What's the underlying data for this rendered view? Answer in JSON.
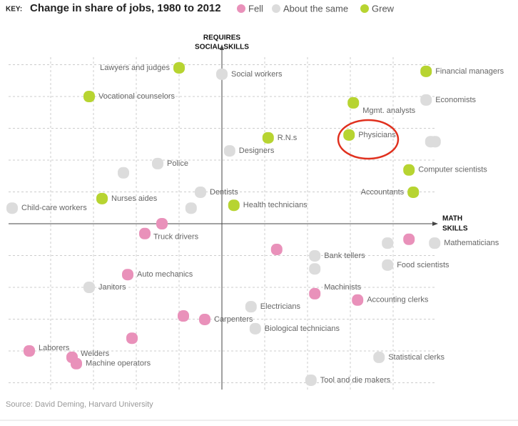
{
  "chart_data": {
    "type": "scatter",
    "key": "KEY:",
    "title": "Change in share of jobs, 1980 to 2012",
    "y_label": [
      "REQUIRES",
      "SOCIAL SKILLS"
    ],
    "x_label": [
      "MATH",
      "SKILLS"
    ],
    "source": "Source: David Deming, Harvard University",
    "xlim": [
      -5,
      5
    ],
    "ylim": [
      -5,
      5
    ],
    "xticks": [
      -4,
      -3,
      -2,
      -1,
      0,
      1,
      2,
      3,
      4
    ],
    "yticks": [
      -5,
      -4,
      -3,
      -2,
      -1,
      0,
      1,
      2,
      3,
      4,
      5
    ],
    "grid": true,
    "series": [
      {
        "name": "Fell",
        "color": "#e991ba",
        "x": [
          -1.4,
          -1.8,
          4.37,
          1.28,
          -2.2,
          2.17,
          3.17,
          -0.9,
          -0.4,
          -2.1,
          -4.5,
          -3.5,
          -3.4
        ],
        "values": [
          0,
          -0.31,
          -0.49,
          -0.81,
          -1.6,
          -2.2,
          -2.4,
          -2.9,
          -3.01,
          -3.6,
          -4.0,
          -4.2,
          -4.4
        ],
        "labels": [
          null,
          "Truck drivers",
          null,
          null,
          "Auto mechanics",
          "Machinists",
          "Accounting clerks",
          null,
          "Carpenters",
          null,
          "Laborers",
          "Welders",
          "Machine operators"
        ]
      },
      {
        "name": "About the same",
        "color": "#dcdcdc",
        "x": [
          0,
          4.77,
          4.88,
          4.98,
          0.18,
          -1.5,
          -2.3,
          -0.5,
          -0.72,
          -4.9,
          3.87,
          4.97,
          2.17,
          2.17,
          3.87,
          -3.1,
          0.68,
          0.78,
          3.67,
          2.08
        ],
        "values": [
          4.7,
          3.89,
          2.58,
          2.58,
          2.29,
          1.89,
          1.6,
          0.99,
          0.49,
          0.49,
          -0.61,
          -0.61,
          -1.01,
          -1.42,
          -1.3,
          -2.0,
          -2.61,
          -3.3,
          -4.2,
          -4.92
        ],
        "labels": [
          "Social workers",
          "Economists",
          null,
          null,
          "Designers",
          "Police",
          null,
          "Dentists",
          null,
          "Child-care workers",
          null,
          "Mathematicians",
          "Bank tellers",
          null,
          "Food scientists",
          "Janitors",
          "Electricians",
          "Biological technicians",
          "Statistical clerks",
          "Tool and die makers"
        ]
      },
      {
        "name": "Grew",
        "color": "#b7d431",
        "x": [
          -1.0,
          -3.1,
          4.77,
          3.07,
          1.08,
          2.97,
          4.37,
          4.47,
          -2.8,
          0.28
        ],
        "values": [
          4.9,
          4.0,
          4.79,
          3.8,
          2.7,
          2.79,
          1.69,
          0.99,
          0.79,
          0.58
        ],
        "labels": [
          "Lawyers and judges",
          "Vocational counselors",
          "Financial managers",
          "Mgmt. analysts",
          "R.N.s",
          "Physicians",
          "Computer scientists",
          "Accountants",
          "Nurses aides",
          "Health technicians"
        ]
      }
    ]
  }
}
